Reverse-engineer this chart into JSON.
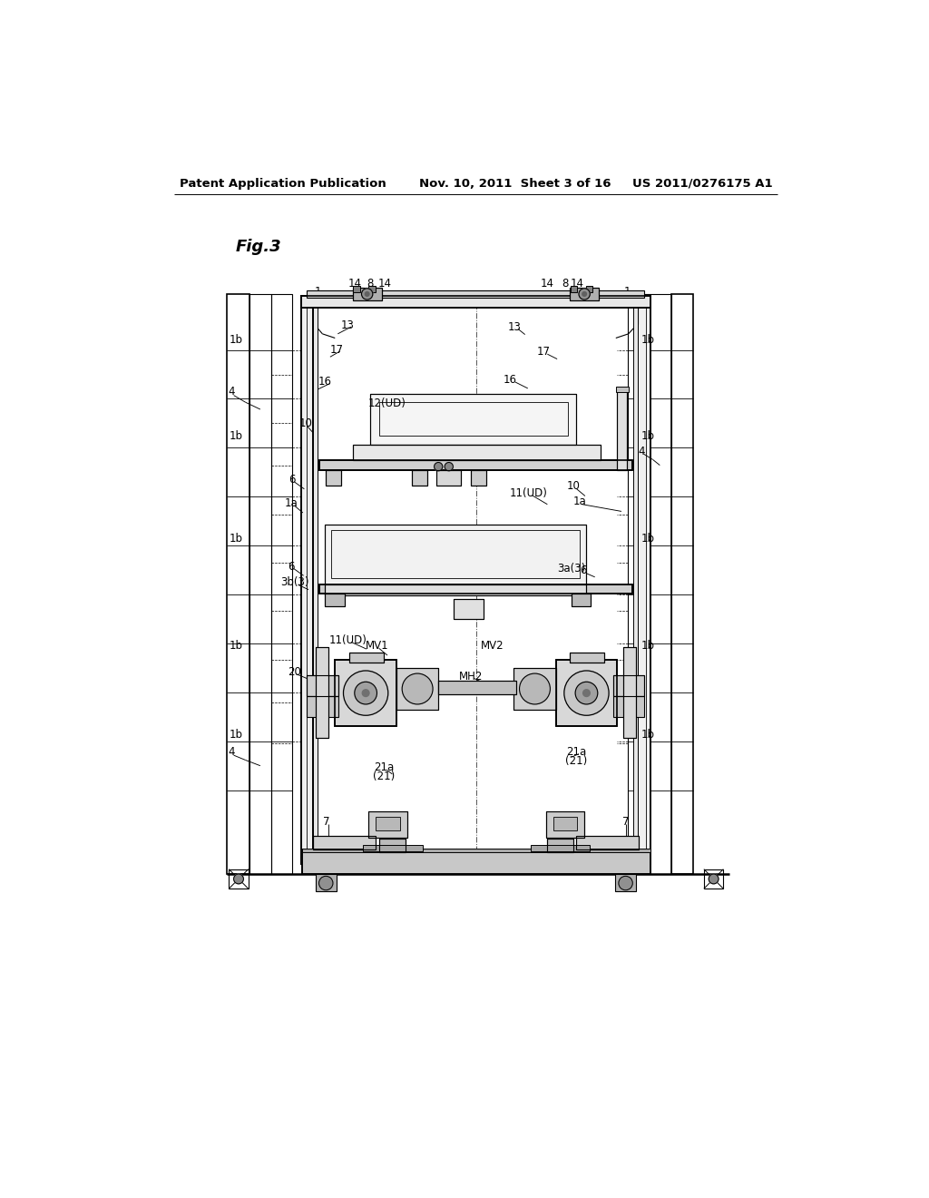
{
  "bg_color": "#ffffff",
  "line_color": "#000000",
  "fig_label": "Fig.3",
  "header_left": "Patent Application Publication",
  "header_mid": "Nov. 10, 2011  Sheet 3 of 16",
  "header_right": "US 2011/0276175 A1"
}
